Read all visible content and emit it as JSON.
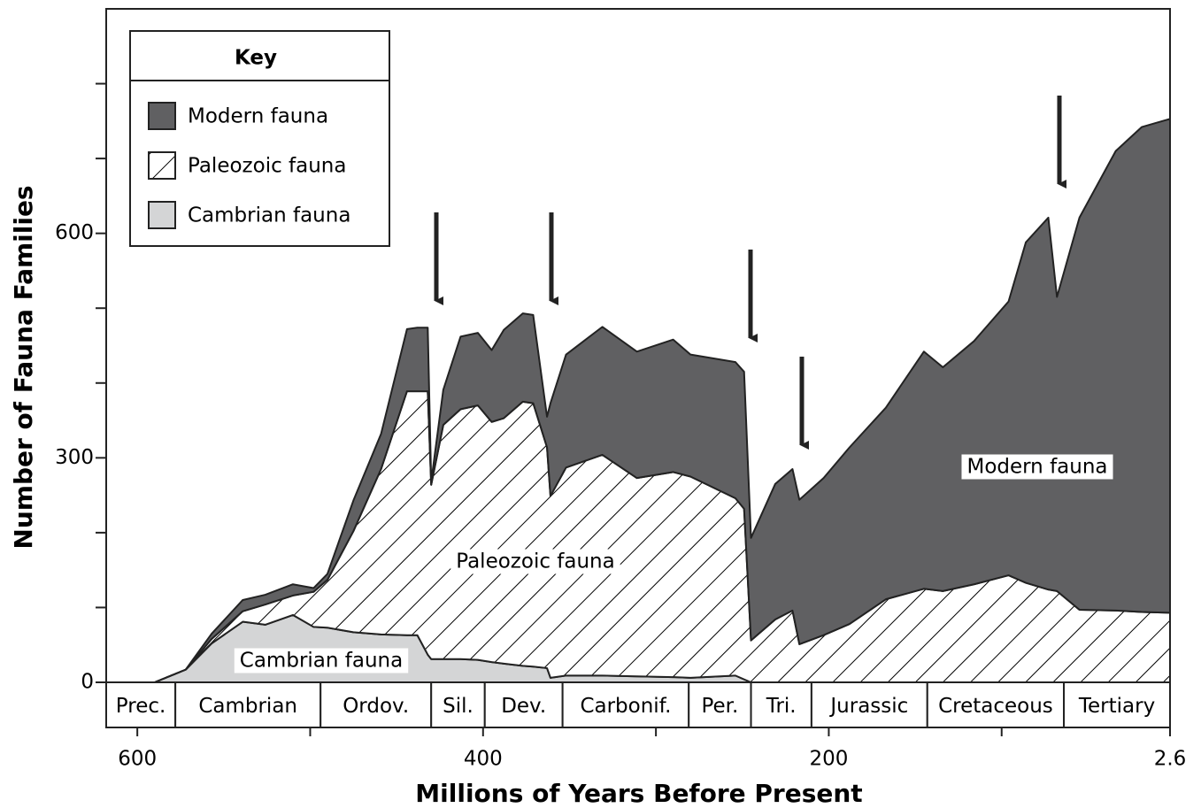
{
  "chart_data": {
    "type": "stacked_area",
    "x_label": "Millions of Years Before Present",
    "y_label": "Number of Fauna Families",
    "legend_title": "Key",
    "xlim": [
      618,
      2.6
    ],
    "xticks": [
      600,
      400,
      200,
      2.6
    ],
    "xminor_ticks": [
      500,
      300,
      100
    ],
    "ylim": [
      0,
      900
    ],
    "yticks": [
      0,
      300,
      600
    ],
    "yminor_ticks": [
      100,
      200,
      400,
      500,
      700,
      800
    ],
    "annotations": [
      "Modern fauna",
      "Paleozoic fauna",
      "Cambrian fauna"
    ],
    "periods": [
      {
        "name": "Prec.",
        "start": 618,
        "end": 578
      },
      {
        "name": "Cambrian",
        "start": 578,
        "end": 494
      },
      {
        "name": "Ordov.",
        "start": 494,
        "end": 430
      },
      {
        "name": "Sil.",
        "start": 430,
        "end": 399
      },
      {
        "name": "Dev.",
        "start": 399,
        "end": 354
      },
      {
        "name": "Carbonif.",
        "start": 354,
        "end": 281
      },
      {
        "name": "Per.",
        "start": 281,
        "end": 245
      },
      {
        "name": "Tri.",
        "start": 245,
        "end": 210
      },
      {
        "name": "Jurassic",
        "start": 210,
        "end": 143
      },
      {
        "name": "Cretaceous",
        "start": 143,
        "end": 64
      },
      {
        "name": "Tertiary",
        "start": 64,
        "end": 2.6
      }
    ],
    "x": [
      590,
      572,
      557,
      539,
      526,
      510,
      498,
      490,
      475,
      459,
      444,
      438,
      432,
      430,
      423,
      413,
      403,
      395,
      388,
      377,
      371,
      363,
      361,
      352,
      331,
      311,
      290,
      280,
      254,
      249,
      245,
      231,
      221,
      217,
      203,
      188,
      167,
      145,
      134,
      116,
      96,
      86,
      73,
      68,
      55,
      34,
      19,
      2.6
    ],
    "series": [
      {
        "name": "Cambrian fauna",
        "color": "#d4d5d6",
        "values": [
          0,
          17,
          52,
          81,
          77,
          90,
          74,
          73,
          67,
          64,
          63,
          63,
          37,
          31,
          31,
          31,
          30,
          27,
          25,
          22,
          21,
          19,
          6,
          9,
          9,
          8,
          7,
          6,
          9,
          4,
          0,
          0,
          0,
          0,
          0,
          0,
          0,
          0,
          0,
          0,
          0,
          0,
          0,
          0,
          0,
          0,
          0,
          0
        ]
      },
      {
        "name": "Paleozoic fauna",
        "color": "#ffffff",
        "pattern": "hatch",
        "values": [
          0,
          0,
          6,
          14,
          27,
          26,
          47,
          64,
          135,
          221,
          326,
          326,
          352,
          233,
          313,
          334,
          340,
          321,
          328,
          353,
          352,
          295,
          243,
          278,
          295,
          265,
          274,
          269,
          237,
          228,
          56,
          84,
          96,
          51,
          63,
          78,
          111,
          125,
          122,
          131,
          143,
          133,
          124,
          122,
          97,
          96,
          94,
          93
        ]
      },
      {
        "name": "Modern fauna",
        "color": "#606062",
        "values": [
          0,
          0,
          7,
          15,
          13,
          15,
          5,
          8,
          41,
          47,
          83,
          85,
          85,
          4,
          47,
          97,
          97,
          96,
          118,
          118,
          118,
          41,
          124,
          151,
          171,
          169,
          177,
          163,
          182,
          183,
          137,
          181,
          189,
          193,
          210,
          236,
          256,
          317,
          299,
          325,
          366,
          455,
          497,
          393,
          524,
          614,
          648,
          660
        ]
      }
    ]
  }
}
